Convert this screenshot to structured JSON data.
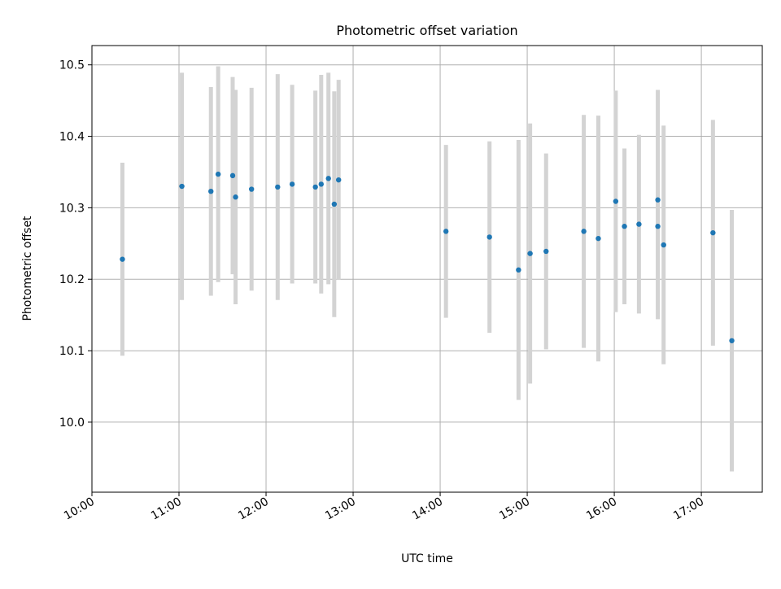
{
  "chart_data": {
    "type": "scatter",
    "title": "Photometric offset variation",
    "xlabel": "UTC time",
    "ylabel": "Photometric offset",
    "xlim": [
      "10:00",
      "17:42"
    ],
    "ylim": [
      9.902,
      10.527
    ],
    "grid": true,
    "x_ticks": [
      "10:00",
      "11:00",
      "12:00",
      "13:00",
      "14:00",
      "15:00",
      "16:00",
      "17:00"
    ],
    "y_ticks": [
      "10.0",
      "10.1",
      "10.2",
      "10.3",
      "10.4",
      "10.5"
    ],
    "marker_color": "#1f77b4",
    "errorbar_color": "#d3d3d3",
    "points": [
      {
        "t": "10:21",
        "y": 10.228,
        "err": 0.135
      },
      {
        "t": "11:02",
        "y": 10.33,
        "err": 0.159
      },
      {
        "t": "11:22",
        "y": 10.323,
        "err": 0.146
      },
      {
        "t": "11:27",
        "y": 10.347,
        "err": 0.151
      },
      {
        "t": "11:37",
        "y": 10.345,
        "err": 0.138
      },
      {
        "t": "11:39",
        "y": 10.315,
        "err": 0.15
      },
      {
        "t": "11:50",
        "y": 10.326,
        "err": 0.142
      },
      {
        "t": "12:08",
        "y": 10.329,
        "err": 0.158
      },
      {
        "t": "12:18",
        "y": 10.333,
        "err": 0.139
      },
      {
        "t": "12:34",
        "y": 10.329,
        "err": 0.135
      },
      {
        "t": "12:38",
        "y": 10.333,
        "err": 0.153
      },
      {
        "t": "12:43",
        "y": 10.341,
        "err": 0.148
      },
      {
        "t": "12:47",
        "y": 10.305,
        "err": 0.158
      },
      {
        "t": "12:50",
        "y": 10.339,
        "err": 0.14
      },
      {
        "t": "14:04",
        "y": 10.267,
        "err": 0.121
      },
      {
        "t": "14:34",
        "y": 10.259,
        "err": 0.134
      },
      {
        "t": "14:54",
        "y": 10.213,
        "err": 0.182
      },
      {
        "t": "15:02",
        "y": 10.236,
        "err": 0.182
      },
      {
        "t": "15:13",
        "y": 10.239,
        "err": 0.137
      },
      {
        "t": "15:39",
        "y": 10.267,
        "err": 0.163
      },
      {
        "t": "15:49",
        "y": 10.257,
        "err": 0.172
      },
      {
        "t": "16:01",
        "y": 10.309,
        "err": 0.155
      },
      {
        "t": "16:07",
        "y": 10.274,
        "err": 0.109
      },
      {
        "t": "16:17",
        "y": 10.277,
        "err": 0.125
      },
      {
        "t": "16:30",
        "y": 10.311,
        "err": 0.154
      },
      {
        "t": "16:30",
        "y": 10.274,
        "err": 0.13
      },
      {
        "t": "16:34",
        "y": 10.248,
        "err": 0.167
      },
      {
        "t": "17:08",
        "y": 10.265,
        "err": 0.158
      },
      {
        "t": "17:21",
        "y": 10.114,
        "err": 0.183
      }
    ]
  }
}
